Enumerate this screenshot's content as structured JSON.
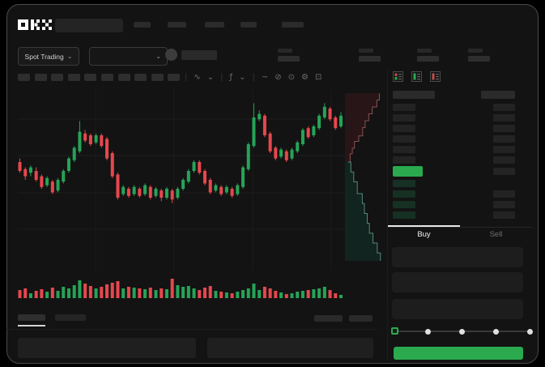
{
  "header": {
    "logo": "OKX",
    "nav_placeholder_count": 5
  },
  "market_bar": {
    "market_selector_label": "Spot Trading",
    "chevron_glyph": "⌄",
    "stat_group_count": 4
  },
  "chart_toolbar": {
    "timeframe_slot_count": 10,
    "icons": [
      {
        "name": "toolbar-divider",
        "glyph": "|"
      },
      {
        "name": "candle-style-icon",
        "glyph": "∿"
      },
      {
        "name": "chevron-down-icon",
        "glyph": "⌄"
      },
      {
        "name": "toolbar-divider",
        "glyph": "|"
      },
      {
        "name": "indicators-icon",
        "glyph": "ƒ"
      },
      {
        "name": "chevron-down-icon",
        "glyph": "⌄"
      },
      {
        "name": "toolbar-divider",
        "glyph": "|"
      },
      {
        "name": "line-tool-icon",
        "glyph": "~"
      },
      {
        "name": "eraser-tool-icon",
        "glyph": "⊘"
      },
      {
        "name": "camera-icon",
        "glyph": "⊙"
      },
      {
        "name": "settings-icon",
        "glyph": "⚙"
      },
      {
        "name": "fullscreen-icon",
        "glyph": "⊡"
      }
    ]
  },
  "orderbook": {
    "layout_icon_names": [
      "orderbook-layout-combined-icon",
      "orderbook-layout-bids-icon",
      "orderbook-layout-asks-icon"
    ],
    "ask_row_count": 6,
    "bid_row_count": 4,
    "bid_rows_with_right_value": 3,
    "last_price_highlight_color": "#2aa94f"
  },
  "trade_panel": {
    "tabs": {
      "buy_label": "Buy",
      "sell_label": "Sell",
      "active": "Buy"
    },
    "field_slot_count": 3,
    "slider": {
      "stop_count": 5,
      "active_stop_index": 0
    },
    "submit_button_color": "#2aa94f"
  },
  "bottom_panel": {
    "tab_slot_count": 2,
    "action_slot_count": 2,
    "row_panel_count": 2
  },
  "colors": {
    "background": "#131313",
    "up_green": "#26a357",
    "down_red": "#e5484d",
    "accent_green": "#2aa94f",
    "skeleton": "#262626",
    "text_primary": "#e8e8e8",
    "text_muted": "#8a8a8a"
  },
  "chart_data": {
    "type": "candlestick",
    "title": "",
    "xlabel": "",
    "ylabel": "",
    "note": "No axis tick labels are visible in the screenshot; OHLC values are in normalized 0-100 price units read from candle pixel positions. Volume in relative units. Depth curves as [distance_from_mid_fraction, cumulative_width_fraction].",
    "x_count": 60,
    "grid": {
      "h_lines": 4,
      "v_lines": 4,
      "visible": "faint"
    },
    "candles": [
      [
        60,
        62,
        54,
        55
      ],
      [
        56,
        57,
        50,
        52
      ],
      [
        54,
        58,
        52,
        57
      ],
      [
        55,
        57,
        49,
        50
      ],
      [
        52,
        53,
        45,
        46
      ],
      [
        47,
        52,
        46,
        51
      ],
      [
        49,
        50,
        42,
        43
      ],
      [
        44,
        51,
        43,
        50
      ],
      [
        49,
        56,
        48,
        55
      ],
      [
        55,
        63,
        54,
        62
      ],
      [
        61,
        69,
        60,
        68
      ],
      [
        66,
        83,
        65,
        77
      ],
      [
        76,
        78,
        71,
        72
      ],
      [
        75,
        76,
        69,
        70
      ],
      [
        71,
        76,
        70,
        75
      ],
      [
        75,
        76,
        68,
        69
      ],
      [
        73,
        74,
        61,
        62
      ],
      [
        65,
        66,
        51,
        52
      ],
      [
        53,
        54,
        39,
        40
      ],
      [
        42,
        47,
        41,
        46
      ],
      [
        45,
        46,
        40,
        41
      ],
      [
        42,
        47,
        41,
        46
      ],
      [
        45,
        46,
        40,
        41
      ],
      [
        42,
        48,
        41,
        47
      ],
      [
        46,
        47,
        39,
        40
      ],
      [
        41,
        46,
        40,
        45
      ],
      [
        44,
        45,
        38,
        40
      ],
      [
        40,
        46,
        39,
        45
      ],
      [
        44,
        45,
        37,
        39
      ],
      [
        40,
        46,
        39,
        45
      ],
      [
        45,
        51,
        44,
        50
      ],
      [
        49,
        56,
        48,
        55
      ],
      [
        55,
        61,
        54,
        60
      ],
      [
        60,
        61,
        53,
        54
      ],
      [
        55,
        56,
        47,
        48
      ],
      [
        50,
        51,
        42,
        43
      ],
      [
        44,
        48,
        43,
        47
      ],
      [
        46,
        47,
        41,
        42
      ],
      [
        43,
        47,
        42,
        46
      ],
      [
        45,
        46,
        40,
        41
      ],
      [
        42,
        48,
        41,
        47
      ],
      [
        46,
        58,
        45,
        57
      ],
      [
        56,
        71,
        55,
        70
      ],
      [
        69,
        93,
        68,
        85
      ],
      [
        84,
        89,
        83,
        87
      ],
      [
        86,
        87,
        74,
        75
      ],
      [
        76,
        77,
        65,
        66
      ],
      [
        68,
        69,
        61,
        62
      ],
      [
        63,
        68,
        62,
        67
      ],
      [
        66,
        67,
        60,
        61
      ],
      [
        62,
        68,
        61,
        67
      ],
      [
        66,
        72,
        65,
        71
      ],
      [
        70,
        79,
        69,
        78
      ],
      [
        79,
        80,
        73,
        74
      ],
      [
        75,
        81,
        74,
        80
      ],
      [
        79,
        87,
        78,
        86
      ],
      [
        85,
        93,
        84,
        91
      ],
      [
        90,
        91,
        83,
        84
      ],
      [
        85,
        86,
        78,
        79
      ],
      [
        80,
        88,
        79,
        86
      ]
    ],
    "volume": [
      10,
      12,
      6,
      9,
      11,
      8,
      13,
      9,
      14,
      12,
      16,
      22,
      18,
      15,
      12,
      14,
      17,
      19,
      21,
      12,
      14,
      13,
      12,
      11,
      13,
      10,
      12,
      11,
      24,
      16,
      14,
      15,
      12,
      10,
      13,
      15,
      9,
      8,
      7,
      6,
      8,
      10,
      12,
      18,
      10,
      14,
      12,
      9,
      7,
      5,
      6,
      8,
      9,
      10,
      11,
      12,
      14,
      10,
      6,
      4
    ],
    "depth": {
      "asks": [
        [
          0,
          0.04
        ],
        [
          0.12,
          0.1
        ],
        [
          0.2,
          0.16
        ],
        [
          0.3,
          0.22
        ],
        [
          0.38,
          0.34
        ],
        [
          0.5,
          0.45
        ],
        [
          0.6,
          0.52
        ],
        [
          0.7,
          0.62
        ],
        [
          0.8,
          0.72
        ],
        [
          0.9,
          0.85
        ],
        [
          1,
          0.92
        ]
      ],
      "bids": [
        [
          0,
          0.04
        ],
        [
          0.1,
          0.12
        ],
        [
          0.2,
          0.2
        ],
        [
          0.32,
          0.3
        ],
        [
          0.42,
          0.44
        ],
        [
          0.52,
          0.5
        ],
        [
          0.62,
          0.58
        ],
        [
          0.72,
          0.64
        ],
        [
          0.82,
          0.74
        ],
        [
          0.92,
          0.86
        ],
        [
          1,
          0.95
        ]
      ]
    }
  }
}
